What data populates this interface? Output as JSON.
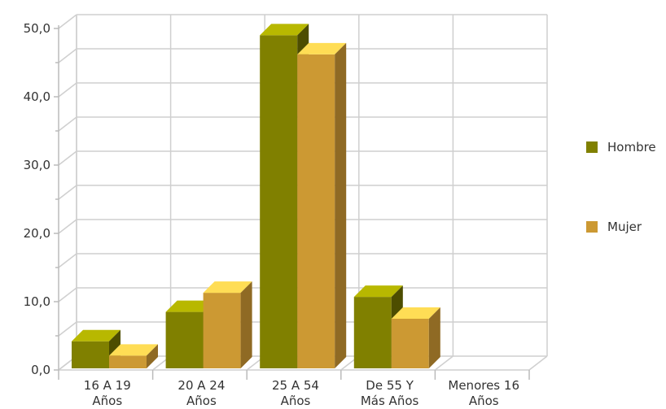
{
  "chart_data": {
    "type": "bar",
    "categories": [
      [
        "16 A 19",
        "Años"
      ],
      [
        "20 A 24",
        "Años"
      ],
      [
        "25 A 54",
        "Años"
      ],
      [
        "De 55 Y",
        "Más Años"
      ],
      [
        "Menores 16",
        "Años"
      ]
    ],
    "series": [
      {
        "name": "Hombre",
        "values": [
          4.2,
          8.5,
          49.0,
          10.7,
          0
        ],
        "color": "#808000",
        "top_color": "#b8b800",
        "side_color": "#4d4d00"
      },
      {
        "name": "Mujer",
        "values": [
          2.1,
          11.3,
          46.2,
          7.5,
          0
        ],
        "color": "#cc9933",
        "top_color": "#ffdd55",
        "side_color": "#8f6a24"
      }
    ],
    "yticks": [
      "0,0",
      "10,0",
      "20,0",
      "30,0",
      "40,0",
      "50,0"
    ],
    "ylim": [
      0,
      50
    ],
    "grid": true,
    "legend_position": "right"
  }
}
